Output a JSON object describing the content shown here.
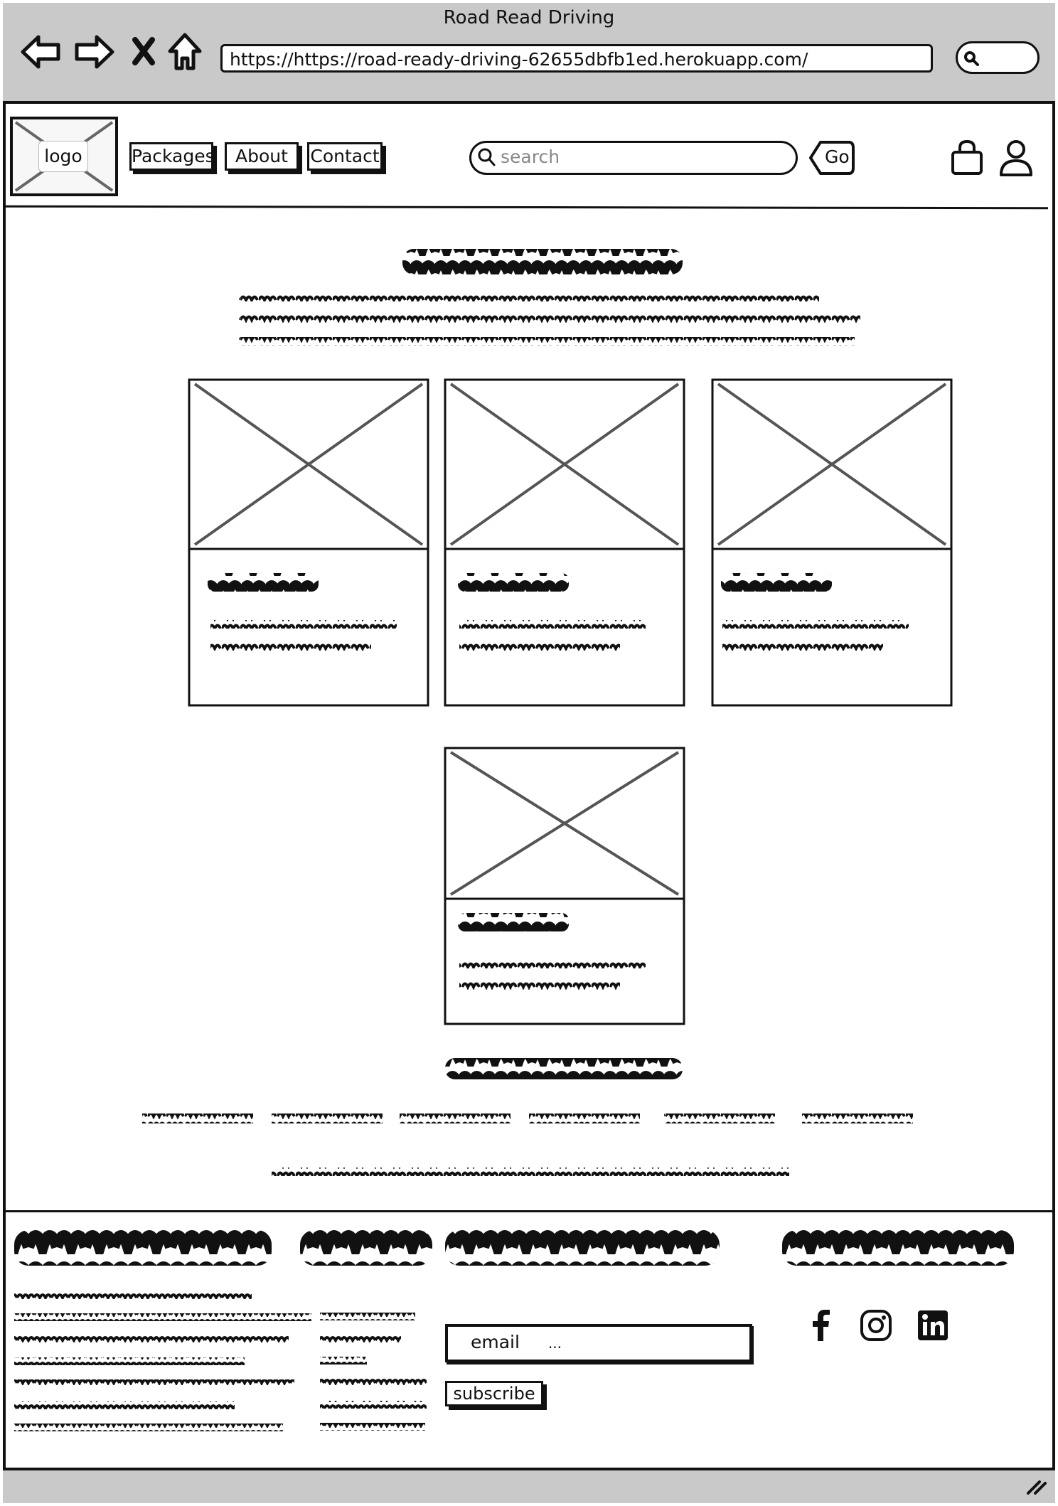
{
  "browser": {
    "window_title": "Road Read Driving",
    "url": "https://https://road-ready-driving-62655dbfb1ed.herokuapp.com/",
    "icons": [
      "back-arrow-icon",
      "forward-arrow-icon",
      "close-x-icon",
      "home-icon",
      "magnifier-icon"
    ]
  },
  "header": {
    "logo_label": "logo",
    "nav": [
      {
        "label": "Packages"
      },
      {
        "label": "About"
      },
      {
        "label": "Contact"
      }
    ],
    "search_placeholder": "search",
    "go_label": "Go",
    "icons": [
      "search-icon",
      "shopping-bag-icon",
      "user-icon"
    ]
  },
  "main": {
    "cards_count": 4
  },
  "footer": {
    "email_placeholder": "email",
    "email_ellipsis": "...",
    "subscribe_label": "subscribe",
    "social_icons": [
      "facebook-icon",
      "instagram-icon",
      "linkedin-icon"
    ]
  },
  "colors": {
    "chrome_gray": "#c9c9c9",
    "ink": "#111111",
    "placeholder_gray": "#555555"
  }
}
